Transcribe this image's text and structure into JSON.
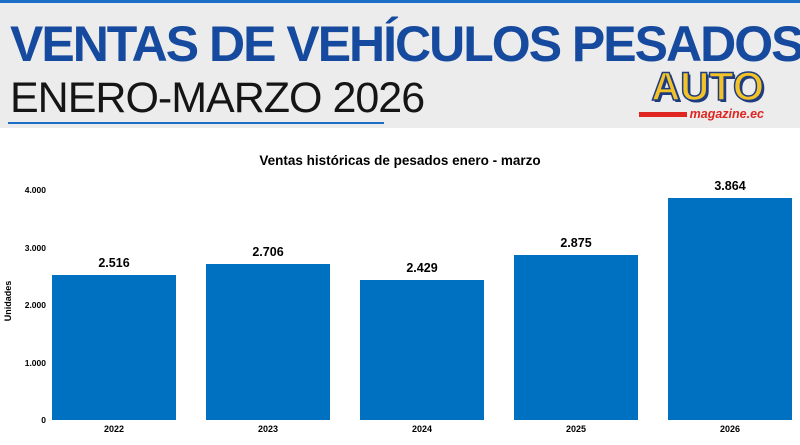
{
  "header": {
    "title": "VENTAS DE VEHÍCULOS PESADOS",
    "subtitle": "ENERO-MARZO 2026",
    "logo": {
      "text": "AUTO",
      "domain": "magazine.ec"
    }
  },
  "colors": {
    "title_blue": "#164A9E",
    "header_bg": "#ECECEC",
    "accent_line": "#1B6FC6",
    "bar_blue": "#0070C0",
    "logo_yellow": "#F2C229",
    "logo_navy": "#1E3C7E",
    "logo_red": "#DF2620"
  },
  "chart_data": {
    "type": "bar",
    "title": "Ventas históricas de pesados enero - marzo",
    "categories": [
      "2022",
      "2023",
      "2024",
      "2025",
      "2026"
    ],
    "values": [
      2516,
      2706,
      2429,
      2875,
      3864
    ],
    "value_labels": [
      "2.516",
      "2.706",
      "2.429",
      "2.875",
      "3.864"
    ],
    "xlabel": "",
    "ylabel": "Unidades",
    "ylim": [
      0,
      4000
    ],
    "yticks": [
      0,
      1000,
      2000,
      3000,
      4000
    ],
    "ytick_labels": [
      "0",
      "1.000",
      "2.000",
      "3.000",
      "4.000"
    ],
    "bar_color": "#0070C0",
    "grid": false,
    "legend": null
  }
}
